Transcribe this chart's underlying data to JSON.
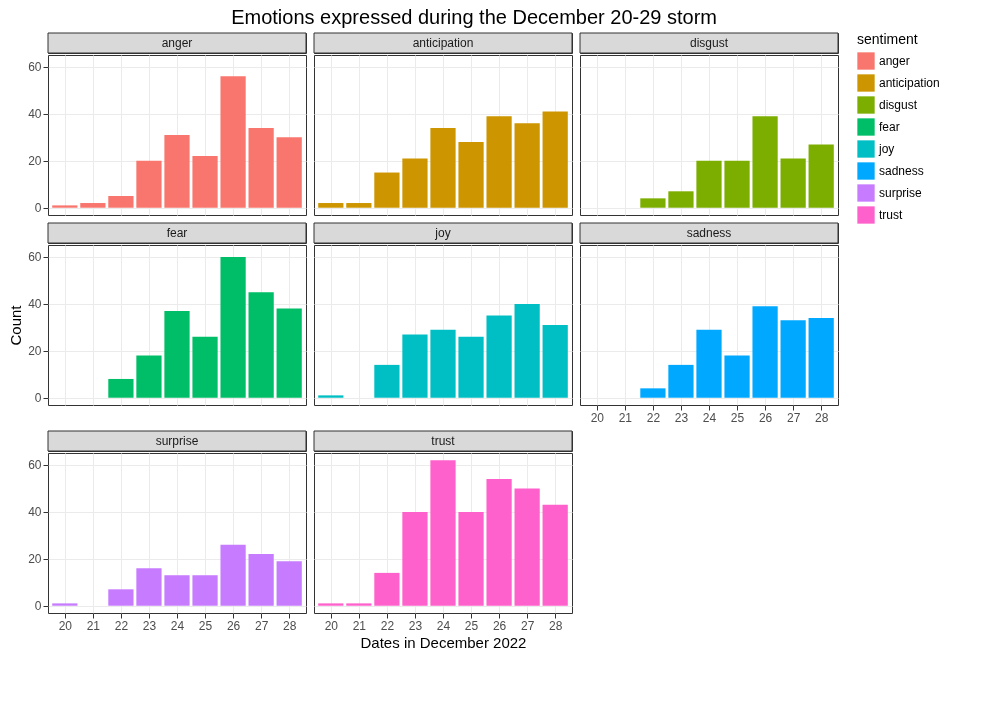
{
  "chart_data": [
    {
      "type": "bar",
      "title": "Emotions expressed during the December 20-29 storm",
      "legend_title": "sentiment",
      "legend": "right",
      "x": [
        20,
        21,
        22,
        23,
        24,
        25,
        26,
        27,
        28
      ],
      "xlim": [
        19.4,
        28.6
      ],
      "xticks": [
        20,
        21,
        22,
        23,
        24,
        25,
        26,
        27,
        28
      ],
      "ylim": [
        -3.1,
        65.1
      ],
      "yticks": [
        0,
        20,
        40,
        60
      ],
      "grid": true,
      "tick_labels": "y",
      "series": [
        {
          "name": "anger",
          "color": "#f8766d",
          "values": [
            1,
            2,
            5,
            20,
            31,
            22,
            56,
            34,
            30
          ]
        }
      ]
    },
    {
      "type": "bar",
      "legend": "right",
      "x": [
        20,
        21,
        22,
        23,
        24,
        25,
        26,
        27,
        28
      ],
      "xlim": [
        19.4,
        28.6
      ],
      "xticks": [
        20,
        21,
        22,
        23,
        24,
        25,
        26,
        27,
        28
      ],
      "ylim": [
        -3.1,
        65.1
      ],
      "yticks": [
        0,
        20,
        40,
        60
      ],
      "grid": true,
      "tick_labels": false,
      "series": [
        {
          "name": "anticipation",
          "color": "#cd9600",
          "values": [
            2,
            2,
            15,
            21,
            34,
            28,
            39,
            36,
            41
          ]
        }
      ]
    },
    {
      "type": "bar",
      "legend": "right",
      "xlim": [
        19.4,
        28.6
      ],
      "xticks": [
        20,
        21,
        22,
        23,
        24,
        25,
        26,
        27,
        28
      ],
      "ylim": [
        -3.1,
        65.1
      ],
      "yticks": [
        0,
        20,
        40,
        60
      ],
      "grid": true,
      "tick_labels": false,
      "series": [
        {
          "name": "disgust",
          "color": "#7cae00",
          "x": [
            22,
            23,
            24,
            25,
            26,
            27,
            28
          ],
          "values": [
            4,
            7,
            20,
            20,
            39,
            21,
            27
          ]
        }
      ]
    },
    {
      "type": "bar",
      "ylabel": "Count",
      "legend": "right",
      "xlim": [
        19.4,
        28.6
      ],
      "xticks": [
        20,
        21,
        22,
        23,
        24,
        25,
        26,
        27,
        28
      ],
      "ylim": [
        -3.1,
        65.1
      ],
      "yticks": [
        0,
        20,
        40,
        60
      ],
      "grid": true,
      "tick_labels": "y",
      "series": [
        {
          "name": "fear",
          "color": "#00be67",
          "x": [
            22,
            23,
            24,
            25,
            26,
            27,
            28
          ],
          "values": [
            8,
            18,
            37,
            26,
            60,
            45,
            38
          ]
        }
      ]
    },
    {
      "type": "bar",
      "legend": "right",
      "x": [
        20,
        21,
        22,
        23,
        24,
        25,
        26,
        27,
        28
      ],
      "xlim": [
        19.4,
        28.6
      ],
      "xticks": [
        20,
        21,
        22,
        23,
        24,
        25,
        26,
        27,
        28
      ],
      "ylim": [
        -3.1,
        65.1
      ],
      "yticks": [
        0,
        20,
        40,
        60
      ],
      "grid": true,
      "tick_labels": false,
      "series": [
        {
          "name": "joy",
          "color": "#00bfc4",
          "values": [
            1,
            null,
            14,
            27,
            29,
            26,
            35,
            40,
            31
          ]
        }
      ]
    },
    {
      "type": "bar",
      "legend": "right",
      "xlim": [
        19.4,
        28.6
      ],
      "xticks": [
        20,
        21,
        22,
        23,
        24,
        25,
        26,
        27,
        28
      ],
      "ylim": [
        -3.1,
        65.1
      ],
      "yticks": [
        0,
        20,
        40,
        60
      ],
      "grid": true,
      "tick_labels": "x",
      "series": [
        {
          "name": "sadness",
          "color": "#00a9ff",
          "x": [
            22,
            23,
            24,
            25,
            26,
            27,
            28
          ],
          "values": [
            4,
            14,
            29,
            18,
            39,
            33,
            34
          ]
        }
      ]
    },
    {
      "type": "bar",
      "legend": "right",
      "x": [
        20,
        21,
        22,
        23,
        24,
        25,
        26,
        27,
        28
      ],
      "xlim": [
        19.4,
        28.6
      ],
      "xticks": [
        20,
        21,
        22,
        23,
        24,
        25,
        26,
        27,
        28
      ],
      "ylim": [
        -3.1,
        65.1
      ],
      "yticks": [
        0,
        20,
        40,
        60
      ],
      "grid": true,
      "series": [
        {
          "name": "surprise",
          "color": "#c77cff",
          "values": [
            1,
            null,
            7,
            16,
            13,
            13,
            26,
            22,
            19
          ]
        }
      ]
    },
    {
      "type": "bar",
      "xlabel": "Dates in December 2022",
      "legend": "right",
      "x": [
        20,
        21,
        22,
        23,
        24,
        25,
        26,
        27,
        28
      ],
      "xlim": [
        19.4,
        28.6
      ],
      "xticks": [
        20,
        21,
        22,
        23,
        24,
        25,
        26,
        27,
        28
      ],
      "ylim": [
        -3.1,
        65.1
      ],
      "yticks": [
        0,
        20,
        40,
        60
      ],
      "grid": true,
      "tick_labels": "x",
      "series": [
        {
          "name": "trust",
          "color": "#ff61cc",
          "values": [
            1,
            1,
            14,
            40,
            62,
            40,
            54,
            50,
            43
          ]
        }
      ]
    }
  ]
}
